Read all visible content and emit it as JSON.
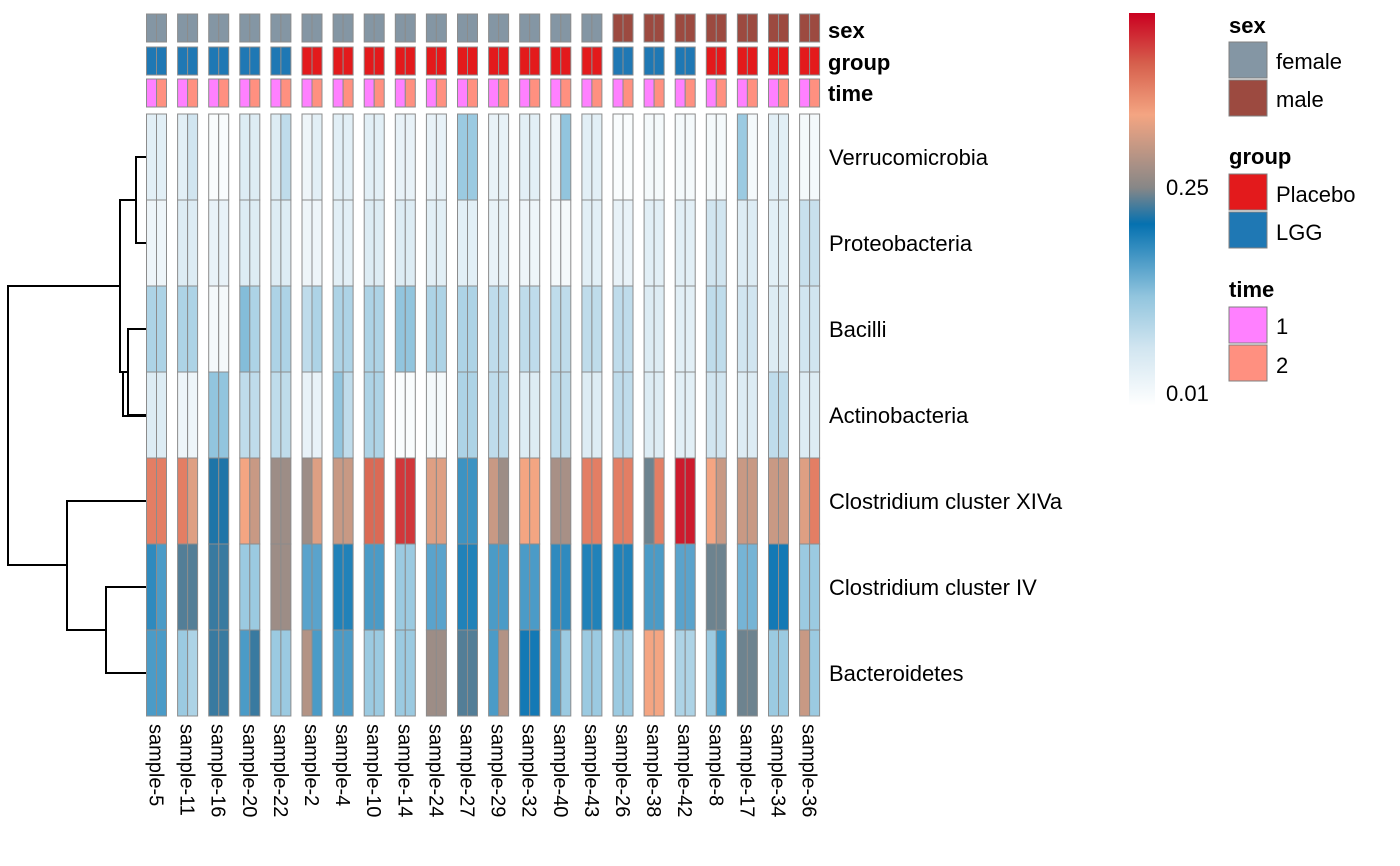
{
  "chart_data": {
    "type": "heatmap",
    "samples": [
      "sample-5",
      "sample-11",
      "sample-16",
      "sample-20",
      "sample-22",
      "sample-2",
      "sample-4",
      "sample-10",
      "sample-14",
      "sample-24",
      "sample-27",
      "sample-29",
      "sample-32",
      "sample-40",
      "sample-43",
      "sample-26",
      "sample-38",
      "sample-42",
      "sample-8",
      "sample-17",
      "sample-34",
      "sample-36"
    ],
    "columns_per_sample": [
      "time 1",
      "time 2"
    ],
    "annotations": {
      "sex": [
        "female",
        "female",
        "female",
        "female",
        "female",
        "female",
        "female",
        "female",
        "female",
        "female",
        "female",
        "female",
        "female",
        "female",
        "female",
        "male",
        "male",
        "male",
        "male",
        "male",
        "male",
        "male"
      ],
      "group": [
        "LGG",
        "LGG",
        "LGG",
        "LGG",
        "LGG",
        "Placebo",
        "Placebo",
        "Placebo",
        "Placebo",
        "Placebo",
        "Placebo",
        "Placebo",
        "Placebo",
        "Placebo",
        "Placebo",
        "LGG",
        "LGG",
        "LGG",
        "Placebo",
        "Placebo",
        "Placebo",
        "Placebo"
      ]
    },
    "rows": [
      "Verrucomicrobia",
      "Proteobacteria",
      "Bacilli",
      "Actinobacteria",
      "Clostridium cluster XIVa",
      "Clostridium cluster IV",
      "Bacteroidetes"
    ],
    "values": [
      [
        [
          0.05,
          0.05
        ],
        [
          0.05,
          0.08
        ],
        [
          0.01,
          0.01
        ],
        [
          0.06,
          0.06
        ],
        [
          0.06,
          0.1
        ],
        [
          0.03,
          0.05
        ],
        [
          0.05,
          0.05
        ],
        [
          0.05,
          0.05
        ],
        [
          0.04,
          0.04
        ],
        [
          0.04,
          0.04
        ],
        [
          0.14,
          0.14
        ],
        [
          0.04,
          0.04
        ],
        [
          0.05,
          0.05
        ],
        [
          0.03,
          0.15
        ],
        [
          0.05,
          0.05
        ],
        [
          0.01,
          0.01
        ],
        [
          0.02,
          0.02
        ],
        [
          0.02,
          0.02
        ],
        [
          0.02,
          0.02
        ],
        [
          0.14,
          0.02
        ],
        [
          0.05,
          0.05
        ],
        [
          0.02,
          0.02
        ]
      ],
      [
        [
          0.03,
          0.03
        ],
        [
          0.06,
          0.06
        ],
        [
          0.04,
          0.04
        ],
        [
          0.06,
          0.06
        ],
        [
          0.06,
          0.06
        ],
        [
          0.03,
          0.03
        ],
        [
          0.05,
          0.05
        ],
        [
          0.06,
          0.06
        ],
        [
          0.06,
          0.06
        ],
        [
          0.05,
          0.05
        ],
        [
          0.05,
          0.05
        ],
        [
          0.04,
          0.04
        ],
        [
          0.03,
          0.03
        ],
        [
          0.02,
          0.02
        ],
        [
          0.05,
          0.05
        ],
        [
          0.04,
          0.04
        ],
        [
          0.05,
          0.05
        ],
        [
          0.05,
          0.05
        ],
        [
          0.08,
          0.08
        ],
        [
          0.06,
          0.06
        ],
        [
          0.05,
          0.05
        ],
        [
          0.09,
          0.09
        ]
      ],
      [
        [
          0.12,
          0.12
        ],
        [
          0.12,
          0.12
        ],
        [
          0.02,
          0.02
        ],
        [
          0.16,
          0.12
        ],
        [
          0.12,
          0.12
        ],
        [
          0.1,
          0.12
        ],
        [
          0.12,
          0.12
        ],
        [
          0.12,
          0.12
        ],
        [
          0.15,
          0.15
        ],
        [
          0.12,
          0.12
        ],
        [
          0.12,
          0.12
        ],
        [
          0.1,
          0.1
        ],
        [
          0.1,
          0.1
        ],
        [
          0.1,
          0.1
        ],
        [
          0.1,
          0.1
        ],
        [
          0.1,
          0.1
        ],
        [
          0.06,
          0.06
        ],
        [
          0.05,
          0.05
        ],
        [
          0.1,
          0.1
        ],
        [
          0.08,
          0.08
        ],
        [
          0.06,
          0.06
        ],
        [
          0.08,
          0.08
        ]
      ],
      [
        [
          0.06,
          0.06
        ],
        [
          0.03,
          0.03
        ],
        [
          0.15,
          0.15
        ],
        [
          0.1,
          0.1
        ],
        [
          0.1,
          0.1
        ],
        [
          0.04,
          0.04
        ],
        [
          0.15,
          0.1
        ],
        [
          0.12,
          0.12
        ],
        [
          0.01,
          0.01
        ],
        [
          0.02,
          0.02
        ],
        [
          0.12,
          0.12
        ],
        [
          0.1,
          0.1
        ],
        [
          0.06,
          0.06
        ],
        [
          0.1,
          0.1
        ],
        [
          0.06,
          0.06
        ],
        [
          0.1,
          0.1
        ],
        [
          0.06,
          0.06
        ],
        [
          0.05,
          0.05
        ],
        [
          0.08,
          0.08
        ],
        [
          0.06,
          0.06
        ],
        [
          0.1,
          0.1
        ],
        [
          0.06,
          0.06
        ]
      ],
      [
        [
          0.44,
          0.44
        ],
        [
          0.44,
          0.38
        ],
        [
          0.26,
          0.26
        ],
        [
          0.4,
          0.36
        ],
        [
          0.32,
          0.32
        ],
        [
          0.32,
          0.38
        ],
        [
          0.36,
          0.36
        ],
        [
          0.46,
          0.46
        ],
        [
          0.5,
          0.5
        ],
        [
          0.38,
          0.38
        ],
        [
          0.21,
          0.21
        ],
        [
          0.36,
          0.32
        ],
        [
          0.4,
          0.4
        ],
        [
          0.33,
          0.33
        ],
        [
          0.44,
          0.44
        ],
        [
          0.44,
          0.44
        ],
        [
          0.29,
          0.44
        ],
        [
          0.52,
          0.52
        ],
        [
          0.4,
          0.36
        ],
        [
          0.36,
          0.36
        ],
        [
          0.36,
          0.36
        ],
        [
          0.38,
          0.44
        ]
      ],
      [
        [
          0.22,
          0.2
        ],
        [
          0.28,
          0.28
        ],
        [
          0.27,
          0.27
        ],
        [
          0.14,
          0.14
        ],
        [
          0.32,
          0.32
        ],
        [
          0.19,
          0.19
        ],
        [
          0.23,
          0.23
        ],
        [
          0.2,
          0.2
        ],
        [
          0.14,
          0.14
        ],
        [
          0.19,
          0.19
        ],
        [
          0.23,
          0.23
        ],
        [
          0.2,
          0.2
        ],
        [
          0.2,
          0.2
        ],
        [
          0.22,
          0.22
        ],
        [
          0.23,
          0.23
        ],
        [
          0.23,
          0.23
        ],
        [
          0.2,
          0.2
        ],
        [
          0.19,
          0.19
        ],
        [
          0.29,
          0.29
        ],
        [
          0.17,
          0.17
        ],
        [
          0.24,
          0.24
        ],
        [
          0.14,
          0.14
        ]
      ],
      [
        [
          0.2,
          0.2
        ],
        [
          0.14,
          0.12
        ],
        [
          0.27,
          0.27
        ],
        [
          0.2,
          0.27
        ],
        [
          0.14,
          0.14
        ],
        [
          0.34,
          0.2
        ],
        [
          0.2,
          0.2
        ],
        [
          0.14,
          0.14
        ],
        [
          0.14,
          0.14
        ],
        [
          0.32,
          0.32
        ],
        [
          0.28,
          0.28
        ],
        [
          0.2,
          0.34
        ],
        [
          0.24,
          0.24
        ],
        [
          0.2,
          0.14
        ],
        [
          0.14,
          0.14
        ],
        [
          0.14,
          0.14
        ],
        [
          0.4,
          0.4
        ],
        [
          0.12,
          0.12
        ],
        [
          0.14,
          0.21
        ],
        [
          0.29,
          0.29
        ],
        [
          0.14,
          0.14
        ],
        [
          0.36,
          0.14
        ]
      ]
    ],
    "color_scale": {
      "stops": [
        {
          "value": 0.0,
          "color": "#ffffff"
        },
        {
          "value": 0.08,
          "color": "#d1e5f0"
        },
        {
          "value": 0.15,
          "color": "#92c5de"
        },
        {
          "value": 0.25,
          "color": "#0571b0"
        },
        {
          "value": 0.3,
          "color": "#878787"
        },
        {
          "value": 0.4,
          "color": "#f4a582"
        },
        {
          "value": 0.47,
          "color": "#d6604d"
        },
        {
          "value": 0.54,
          "color": "#ca0020"
        }
      ],
      "range": [
        0.0,
        0.54
      ],
      "ticks": [
        0.01,
        0.25
      ]
    },
    "legend": {
      "sex": {
        "title": "sex",
        "entries": [
          {
            "label": "female",
            "color": "#8496a4"
          },
          {
            "label": "male",
            "color": "#9c4a40"
          }
        ]
      },
      "group": {
        "title": "group",
        "entries": [
          {
            "label": "Placebo",
            "color": "#e31a1c"
          },
          {
            "label": "LGG",
            "color": "#1f78b4"
          }
        ]
      },
      "time": {
        "title": "time",
        "entries": [
          {
            "label": "1",
            "color": "#ff80ff"
          },
          {
            "label": "2",
            "color": "#ff9080"
          }
        ]
      }
    },
    "colorbar_labels": [
      "0.25",
      "0.01"
    ],
    "annotation_labels": [
      "sex",
      "group",
      "time"
    ]
  }
}
